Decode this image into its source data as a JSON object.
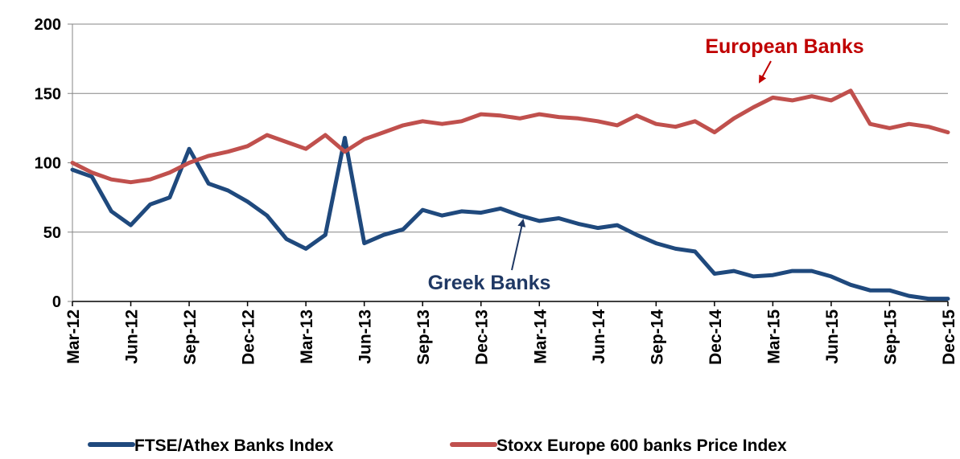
{
  "chart_data": {
    "type": "line",
    "x_ticks": [
      "Mar-12",
      "Jun-12",
      "Sep-12",
      "Dec-12",
      "Mar-13",
      "Jun-13",
      "Sep-13",
      "Dec-13",
      "Mar-14",
      "Jun-14",
      "Sep-14",
      "Dec-14",
      "Mar-15",
      "Jun-15",
      "Sep-15",
      "Dec-15"
    ],
    "y_ticks": [
      "0",
      "50",
      "100",
      "150",
      "200"
    ],
    "ylim": [
      0,
      200
    ],
    "grid": "horizontal",
    "legend_position": "bottom",
    "series": [
      {
        "name": "FTSE/Athex Banks Index",
        "color": "#1f497d",
        "x": [
          "Mar-12",
          "Apr-12",
          "May-12",
          "Jun-12",
          "Jul-12",
          "Aug-12",
          "Sep-12",
          "Oct-12",
          "Nov-12",
          "Dec-12",
          "Jan-13",
          "Feb-13",
          "Mar-13",
          "Apr-13",
          "May-13",
          "Jun-13",
          "Jul-13",
          "Aug-13",
          "Sep-13",
          "Oct-13",
          "Nov-13",
          "Dec-13",
          "Jan-14",
          "Feb-14",
          "Mar-14",
          "Apr-14",
          "May-14",
          "Jun-14",
          "Jul-14",
          "Aug-14",
          "Sep-14",
          "Oct-14",
          "Nov-14",
          "Dec-14",
          "Jan-15",
          "Feb-15",
          "Mar-15",
          "Apr-15",
          "May-15",
          "Jun-15",
          "Jul-15",
          "Aug-15",
          "Sep-15",
          "Oct-15",
          "Nov-15",
          "Dec-15"
        ],
        "values": [
          95,
          90,
          65,
          55,
          70,
          75,
          110,
          85,
          80,
          72,
          62,
          45,
          38,
          48,
          118,
          42,
          48,
          52,
          66,
          62,
          65,
          64,
          67,
          62,
          58,
          60,
          56,
          53,
          55,
          48,
          42,
          38,
          36,
          20,
          22,
          18,
          19,
          22,
          22,
          18,
          12,
          8,
          8,
          4,
          2,
          2
        ]
      },
      {
        "name": "Stoxx Europe 600 banks Price Index",
        "color": "#c0504d",
        "x": [
          "Mar-12",
          "Apr-12",
          "May-12",
          "Jun-12",
          "Jul-12",
          "Aug-12",
          "Sep-12",
          "Oct-12",
          "Nov-12",
          "Dec-12",
          "Jan-13",
          "Feb-13",
          "Mar-13",
          "Apr-13",
          "May-13",
          "Jun-13",
          "Jul-13",
          "Aug-13",
          "Sep-13",
          "Oct-13",
          "Nov-13",
          "Dec-13",
          "Jan-14",
          "Feb-14",
          "Mar-14",
          "Apr-14",
          "May-14",
          "Jun-14",
          "Jul-14",
          "Aug-14",
          "Sep-14",
          "Oct-14",
          "Nov-14",
          "Dec-14",
          "Jan-15",
          "Feb-15",
          "Mar-15",
          "Apr-15",
          "May-15",
          "Jun-15",
          "Jul-15",
          "Aug-15",
          "Sep-15",
          "Oct-15",
          "Nov-15",
          "Dec-15"
        ],
        "values": [
          100,
          93,
          88,
          86,
          88,
          93,
          100,
          105,
          108,
          112,
          120,
          115,
          110,
          120,
          108,
          117,
          122,
          127,
          130,
          128,
          130,
          135,
          134,
          132,
          135,
          133,
          132,
          130,
          127,
          134,
          128,
          126,
          130,
          122,
          132,
          140,
          147,
          145,
          148,
          145,
          152,
          128,
          125,
          128,
          126,
          122
        ]
      }
    ],
    "annotations": [
      {
        "text": "European Banks",
        "color": "#c00000",
        "points_to": "Stoxx Europe 600 banks Price Index"
      },
      {
        "text": "Greek Banks",
        "color": "#1f3864",
        "points_to": "FTSE/Athex Banks Index"
      }
    ]
  }
}
